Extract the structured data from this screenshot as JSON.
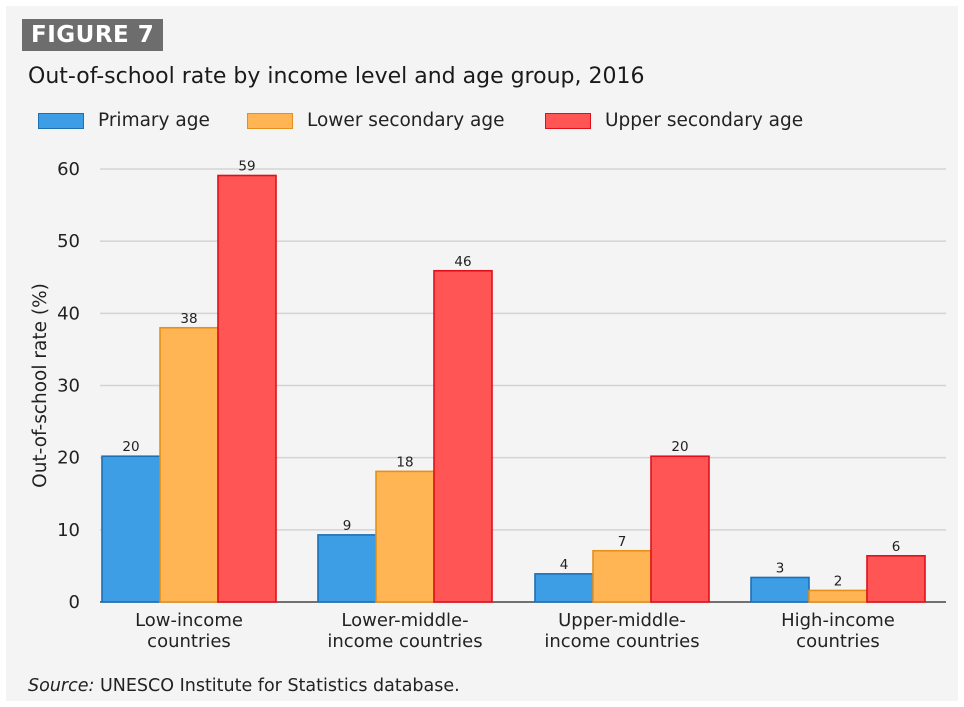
{
  "figure_label": "FIGURE 7",
  "source": {
    "label": "Source:",
    "text": " UNESCO Institute for Statistics database."
  },
  "colors": {
    "primary_fill": "#3d9ee5",
    "primary_stroke": "#1f6fb5",
    "lower_fill": "#ffb554",
    "lower_stroke": "#e5901c",
    "upper_fill": "#ff5555",
    "upper_stroke": "#e0101b",
    "grid": "#d3d3d3",
    "axis": "#222222"
  },
  "chart_data": {
    "type": "bar",
    "title": "Out-of-school rate by income level and age group, 2016",
    "ylabel": "Out-of-school rate (%)",
    "xlabel": "",
    "ylim": [
      0,
      60
    ],
    "yticks": [
      0,
      10,
      20,
      30,
      40,
      50,
      60
    ],
    "grid": "horizontal",
    "legend_position": "top-left",
    "categories": [
      [
        "Low-income",
        "countries"
      ],
      [
        "Lower-middle-",
        "income countries"
      ],
      [
        "Upper-middle-",
        "income countries"
      ],
      [
        "High-income",
        "countries"
      ]
    ],
    "series": [
      {
        "name": "Primary age",
        "values": [
          20.2,
          9.3,
          3.9,
          3.4
        ],
        "labels": [
          "20",
          "9",
          "4",
          "3"
        ]
      },
      {
        "name": "Lower secondary age",
        "values": [
          38,
          18.1,
          7.1,
          1.6
        ],
        "labels": [
          "38",
          "18",
          "7",
          "2"
        ]
      },
      {
        "name": "Upper secondary age",
        "values": [
          59.1,
          45.9,
          20.2,
          6.4
        ],
        "labels": [
          "59",
          "46",
          "20",
          "6"
        ]
      }
    ]
  }
}
